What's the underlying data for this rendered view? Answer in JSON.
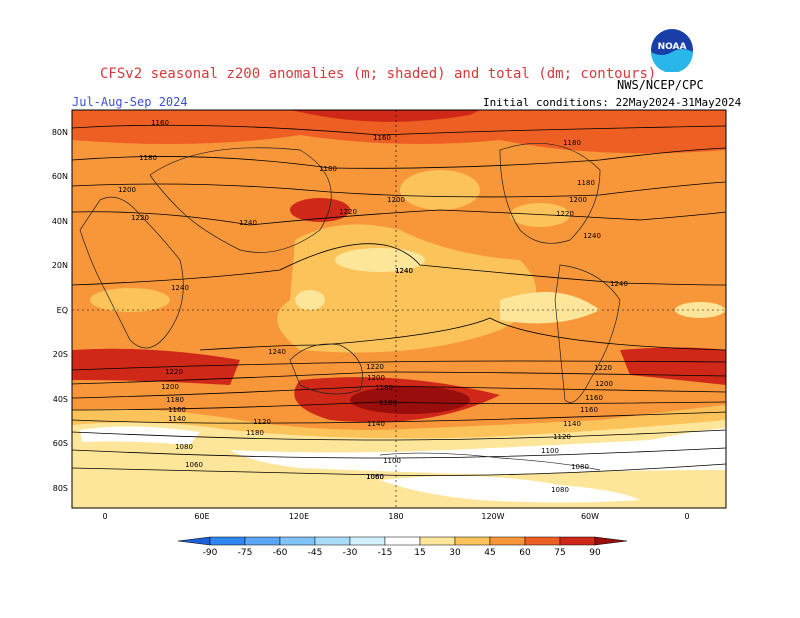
{
  "header": {
    "title": "CFSv2 seasonal z200 anomalies (m; shaded) and total (dm; contours)",
    "credit": "NWS/NCEP/CPC",
    "period": "Jul-Aug-Sep 2024",
    "initial_conditions": "Initial conditions: 22May2024-31May2024",
    "logo_text": "NOAA"
  },
  "map": {
    "lat_labels": [
      "80N",
      "60N",
      "40N",
      "20N",
      "EQ",
      "20S",
      "40S",
      "60S",
      "80S"
    ],
    "lon_labels": [
      "0",
      "60E",
      "120E",
      "180",
      "120W",
      "60W",
      "0"
    ],
    "contour_labels": [
      "1160",
      "1180",
      "1200",
      "1220",
      "1240",
      "1180",
      "1220",
      "1200",
      "1240",
      "1160",
      "1180",
      "1200",
      "1220",
      "1240",
      "1220",
      "1200",
      "1180",
      "1160",
      "1240",
      "1240",
      "1240",
      "1240",
      "1220",
      "1200",
      "1180",
      "1160",
      "1140",
      "1120",
      "1100",
      "1080",
      "1060",
      "1080",
      "1060",
      "1180",
      "1160",
      "1140",
      "1120",
      "1100",
      "1080",
      "1060",
      "1180",
      "1220",
      "1200",
      "1180",
      "1140"
    ]
  },
  "colorbar": {
    "labels": [
      "-90",
      "-75",
      "-60",
      "-45",
      "-30",
      "-15",
      "15",
      "30",
      "45",
      "60",
      "75",
      "90"
    ],
    "colors": [
      "#1f5fd9",
      "#2f86ee",
      "#5ba6f5",
      "#7fc3f8",
      "#a8dcfb",
      "#d2f0fd",
      "#ffffff",
      "#fde69a",
      "#fbc35a",
      "#f8963a",
      "#ee5f24",
      "#cf2818",
      "#9a0d0d"
    ]
  },
  "colors": {
    "title": "#d63a3a",
    "period": "#3b4fd6",
    "ocean_base": "#f8963a"
  }
}
